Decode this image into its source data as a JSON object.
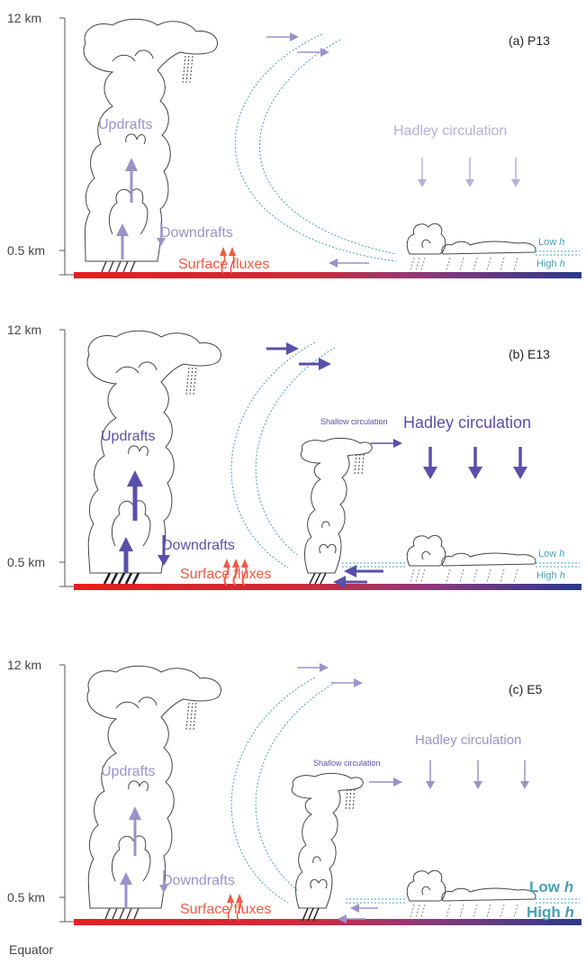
{
  "panels": [
    {
      "id": "a",
      "label": "(a) P13",
      "axis_top": "12 km",
      "axis_low": "0.5 km",
      "updrafts": "Updrafts",
      "downdrafts": "Downdrafts",
      "surface_fluxes": "Surface fluxes",
      "hadley": "Hadley circulation",
      "shallow": "",
      "low_h": "Low ",
      "high_h": "High ",
      "h_symbol": "h"
    },
    {
      "id": "b",
      "label": "(b) E13",
      "axis_top": "12 km",
      "axis_low": "0.5 km",
      "updrafts": "Updrafts",
      "downdrafts": "Downdrafts",
      "surface_fluxes": "Surface fluxes",
      "hadley": "Hadley circulation",
      "shallow": "Shallow circulation",
      "low_h": "Low ",
      "high_h": "High ",
      "h_symbol": "h"
    },
    {
      "id": "c",
      "label": "(c) E5",
      "axis_top": "12 km",
      "axis_low": "0.5 km",
      "updrafts": "Updrafts",
      "downdrafts": "Downdrafts",
      "surface_fluxes": "Surface fluxes",
      "hadley": "Hadley circulation",
      "shallow": "Shallow circulation",
      "low_h": "Low ",
      "high_h": "High ",
      "h_symbol": "h"
    }
  ],
  "footer": {
    "equator": "Equator"
  },
  "colors": {
    "light_purple": "#9b92c9",
    "dark_purple": "#5a4fa9",
    "surface_red": "#f05a45",
    "teal": "#4a9fb8",
    "outline": "#444444",
    "bar_left": "#e41f1f",
    "bar_right": "#2a3a8a"
  }
}
